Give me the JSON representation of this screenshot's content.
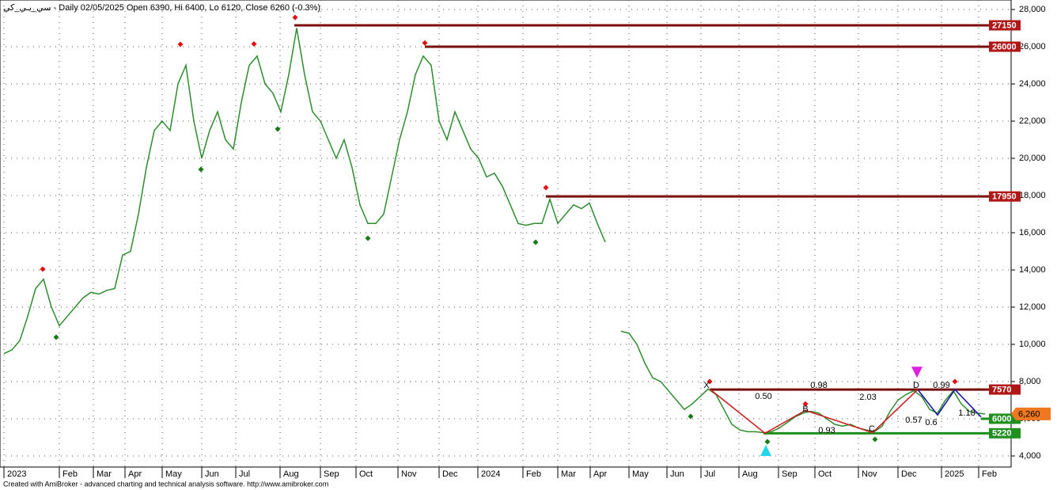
{
  "chart_data": {
    "type": "line",
    "title": "سي_يـي_كي - Daily 02/05/2025 Open 6390, Hi 6400, Lo 6120, Close 6260 (-0.3%)",
    "footer": "Created with AmiBroker - advanced charting and technical analysis software. http://www.amibroker.com",
    "xlim": [
      0,
      1278
    ],
    "ylim": [
      3404,
      28511
    ],
    "grid": true,
    "yticks": [
      {
        "value": 4000,
        "label": "4,000"
      },
      {
        "value": 6000,
        "label": "6,000"
      },
      {
        "value": 8000,
        "label": "8,000"
      },
      {
        "value": 10000,
        "label": "10,000"
      },
      {
        "value": 12000,
        "label": "12,000"
      },
      {
        "value": 14000,
        "label": "14,000"
      },
      {
        "value": 16000,
        "label": "16,000"
      },
      {
        "value": 18000,
        "label": "18,000"
      },
      {
        "value": 20000,
        "label": "20,000"
      },
      {
        "value": 22000,
        "label": "22,000"
      },
      {
        "value": 24000,
        "label": "24,000"
      },
      {
        "value": 26000,
        "label": "26,000"
      },
      {
        "value": 28000,
        "label": "28,000"
      }
    ],
    "xticks": [
      {
        "value": 5,
        "label": "2023"
      },
      {
        "value": 75,
        "label": "Feb"
      },
      {
        "value": 118,
        "label": "Mar"
      },
      {
        "value": 158,
        "label": "Apr"
      },
      {
        "value": 205,
        "label": "May"
      },
      {
        "value": 255,
        "label": "Jun"
      },
      {
        "value": 298,
        "label": "Jul"
      },
      {
        "value": 354,
        "label": "Aug"
      },
      {
        "value": 405,
        "label": "Sep"
      },
      {
        "value": 450,
        "label": "Oct"
      },
      {
        "value": 503,
        "label": "Nov"
      },
      {
        "value": 555,
        "label": "Dec"
      },
      {
        "value": 604,
        "label": "2024"
      },
      {
        "value": 661,
        "label": "Feb"
      },
      {
        "value": 705,
        "label": "Mar"
      },
      {
        "value": 746,
        "label": "Apr"
      },
      {
        "value": 795,
        "label": "May"
      },
      {
        "value": 843,
        "label": "Jun"
      },
      {
        "value": 886,
        "label": "Jul"
      },
      {
        "value": 934,
        "label": "Aug"
      },
      {
        "value": 984,
        "label": "Sep"
      },
      {
        "value": 1030,
        "label": "Oct"
      },
      {
        "value": 1085,
        "label": "Nov"
      },
      {
        "value": 1135,
        "label": "Dec"
      },
      {
        "value": 1190,
        "label": "2025"
      },
      {
        "value": 1237,
        "label": "Feb"
      }
    ],
    "x": [
      5,
      15,
      25,
      35,
      45,
      55,
      65,
      75,
      85,
      95,
      105,
      115,
      125,
      135,
      145,
      155,
      165,
      175,
      185,
      195,
      205,
      215,
      225,
      235,
      245,
      255,
      265,
      275,
      285,
      295,
      305,
      315,
      325,
      335,
      345,
      355,
      365,
      375,
      385,
      395,
      405,
      415,
      425,
      435,
      445,
      455,
      465,
      475,
      485,
      495,
      505,
      515,
      525,
      535,
      545,
      555,
      565,
      575,
      585,
      595,
      605,
      615,
      625,
      635,
      645,
      655,
      665,
      675,
      685,
      695,
      705,
      715,
      725,
      735,
      745,
      755,
      765,
      775,
      785,
      795,
      805,
      815,
      825,
      835,
      845,
      855,
      865,
      875,
      885,
      895,
      905,
      915,
      925,
      935,
      945,
      955,
      965,
      975,
      985,
      995,
      1005,
      1015,
      1025,
      1035,
      1045,
      1055,
      1065,
      1075,
      1085,
      1095,
      1105,
      1115,
      1125,
      1135,
      1145,
      1155,
      1165,
      1175,
      1185,
      1195,
      1205,
      1215,
      1225,
      1235,
      1245
    ],
    "series": [
      {
        "name": "Close",
        "color": "#2e8b2e",
        "values": [
          9500,
          9700,
          10200,
          11500,
          13000,
          13500,
          12000,
          11000,
          11500,
          12000,
          12500,
          12800,
          12700,
          12900,
          13000,
          14800,
          15000,
          17000,
          19500,
          21500,
          22000,
          21500,
          24000,
          25000,
          22000,
          20000,
          21500,
          22500,
          21000,
          20500,
          23000,
          25000,
          25500,
          24000,
          23500,
          22500,
          24500,
          27000,
          24500,
          22500,
          22000,
          21000,
          20000,
          21000,
          19500,
          17500,
          16500,
          16500,
          17000,
          19000,
          21000,
          22500,
          24500,
          25500,
          25000,
          22000,
          21000,
          22500,
          21500,
          20500,
          20000,
          19000,
          19200,
          18500,
          17500,
          16500,
          16400,
          16500,
          16500,
          17800,
          16500,
          17000,
          17500,
          17300,
          17600,
          16500,
          15500,
          null,
          10700,
          10600,
          10000,
          9000,
          8200,
          8000,
          7500,
          7000,
          6500,
          6800,
          7200,
          7600,
          7300,
          6500,
          5700,
          5400,
          5300,
          5300,
          5250,
          5300,
          5500,
          5800,
          6100,
          6300,
          6400,
          6300,
          6000,
          5700,
          5600,
          5700,
          5500,
          5400,
          5300,
          5600,
          6400,
          7000,
          7300,
          7500,
          7200,
          6500,
          6300,
          7000,
          7500,
          6800,
          6400,
          6300,
          6260
        ]
      }
    ],
    "levels": [
      {
        "value": 27150,
        "x": 372,
        "color": "#7a0c0c",
        "box": "#b01818"
      },
      {
        "value": 26000,
        "x": 537,
        "color": "#7a0c0c",
        "box": "#b01818"
      },
      {
        "value": 17950,
        "x": 690,
        "color": "#7a0c0c",
        "box": "#b01818"
      },
      {
        "value": 7570,
        "x": 897,
        "color": "#7a0c0c",
        "box": "#b01818"
      },
      {
        "value": 6000,
        "x": 1240,
        "color": "#1f8f1f",
        "box": "#1f8f1f"
      },
      {
        "value": 5220,
        "x": 965,
        "color": "#1f8f1f",
        "box": "#1f8f1f"
      }
    ],
    "last_price": {
      "value": 6260,
      "label": "6,260",
      "color": "#f07820"
    },
    "peaks": {
      "color": "#e01010",
      "x": [
        54,
        228,
        321,
        373,
        537,
        690,
        897,
        1018,
        1207
      ],
      "y": [
        14043,
        26128,
        26150,
        27574,
        26200,
        18426,
        8000,
        6800,
        8000
      ]
    },
    "troughs": {
      "color": "#167a16",
      "x": [
        71,
        254,
        351,
        465,
        677,
        873,
        970,
        1106
      ],
      "y": [
        10383,
        19404,
        21574,
        15702,
        15489,
        6128,
        4766,
        4894
      ]
    },
    "patterns": [
      {
        "color": "#cc1f1f",
        "x": [
          897,
          967,
          1018,
          1103,
          1160
        ],
        "y": [
          7600,
          5220,
          6450,
          5250,
          7570
        ]
      },
      {
        "color": "#1a1aa8",
        "x": [
          1160,
          1185,
          1207,
          1240
        ],
        "y": [
          7570,
          6200,
          7570,
          6100
        ]
      }
    ],
    "annotations": [
      {
        "text": "0.50",
        "x": 965,
        "y": 7191,
        "color": "#cc1f1f"
      },
      {
        "text": "0.98",
        "x": 1035,
        "y": 7787,
        "color": "#cc1f1f"
      },
      {
        "text": "2.03",
        "x": 1097,
        "y": 7149,
        "color": "#cc1f1f"
      },
      {
        "text": "0.93",
        "x": 1045,
        "y": 5362,
        "color": "#cc1f1f"
      },
      {
        "text": "0.99",
        "x": 1190,
        "y": 7787,
        "color": "#1a1aa8"
      },
      {
        "text": "0.57",
        "x": 1155,
        "y": 5915,
        "color": "#1a1aa8"
      },
      {
        "text": "0.6",
        "x": 1177,
        "y": 5787,
        "color": "#1a1aa8"
      },
      {
        "text": "1.18",
        "x": 1222,
        "y": 6298,
        "color": "#1a1aa8"
      },
      {
        "text": "X",
        "x": 893,
        "y": 7787,
        "color": "#cc1f1f"
      },
      {
        "text": "B",
        "x": 1018,
        "y": 6511,
        "color": "#cc1f1f"
      },
      {
        "text": "C",
        "x": 1102,
        "y": 5447,
        "color": "#cc1f1f"
      },
      {
        "text": "D",
        "x": 1158,
        "y": 7787,
        "color": "#1a1aa8"
      }
    ],
    "signals": [
      {
        "kind": "buy",
        "x": 968,
        "y": 4300,
        "color": "#22d8e8"
      },
      {
        "kind": "sell",
        "x": 1159,
        "y": 8500,
        "color": "#e020e0"
      }
    ]
  }
}
